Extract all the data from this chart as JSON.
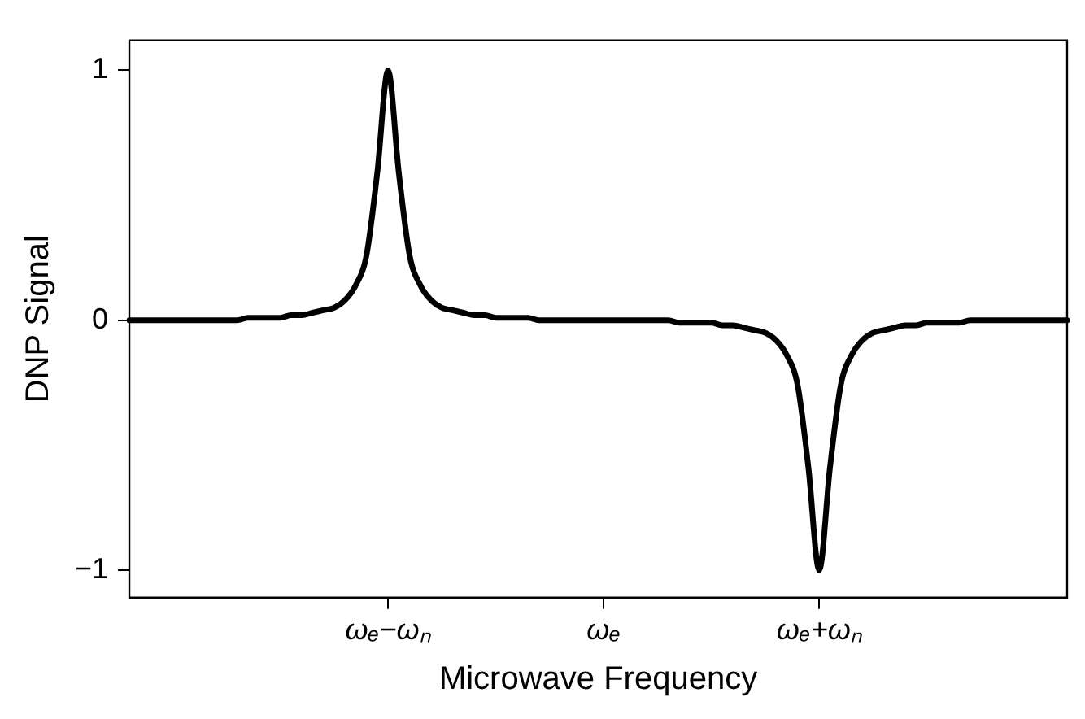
{
  "chart_data": {
    "type": "line",
    "xlabel": "Microwave Frequency",
    "ylabel": "DNP Signal",
    "categories": [
      null,
      null,
      null,
      null,
      null,
      null,
      null,
      null,
      null,
      null,
      null,
      null,
      null,
      null,
      null,
      null,
      null,
      null,
      null,
      null,
      null,
      null,
      null,
      null,
      "ωₑ−ωₙ",
      null,
      null,
      null,
      null,
      null,
      null,
      null,
      null,
      null,
      null,
      null,
      null,
      null,
      null,
      null,
      null,
      null,
      null,
      null,
      "ωₑ",
      null,
      null,
      null,
      null,
      null,
      null,
      null,
      null,
      null,
      null,
      null,
      null,
      null,
      null,
      null,
      null,
      null,
      null,
      null,
      "ωₑ+ωₙ",
      null,
      null,
      null,
      null,
      null,
      null,
      null,
      null,
      null,
      null,
      null,
      null,
      null,
      null,
      null,
      null,
      null,
      null,
      null,
      null,
      null,
      null,
      null
    ],
    "series": [
      {
        "color": "#000000",
        "values": [
          0,
          0,
          0,
          0,
          0,
          0,
          0,
          0,
          0,
          0,
          0,
          0.01,
          0.01,
          0.01,
          0.01,
          0.02,
          0.02,
          0.03,
          0.04,
          0.05,
          0.08,
          0.14,
          0.26,
          0.59,
          1,
          0.59,
          0.26,
          0.14,
          0.08,
          0.05,
          0.04,
          0.03,
          0.02,
          0.02,
          0.01,
          0.01,
          0.01,
          0.01,
          0,
          0,
          0,
          0,
          0,
          0,
          0,
          0,
          0,
          0,
          0,
          0,
          0,
          -0.01,
          -0.01,
          -0.01,
          -0.01,
          -0.02,
          -0.02,
          -0.03,
          -0.04,
          -0.05,
          -0.08,
          -0.14,
          -0.26,
          -0.59,
          -1,
          -0.59,
          -0.26,
          -0.14,
          -0.08,
          -0.05,
          -0.04,
          -0.03,
          -0.02,
          -0.02,
          -0.01,
          -0.01,
          -0.01,
          -0.01,
          0,
          0,
          0,
          0,
          0,
          0,
          0,
          0,
          0,
          0
        ]
      }
    ],
    "ylim": [
      -1.11,
      1.12
    ],
    "yticks": [
      {
        "value": -1,
        "label": "−1"
      },
      0,
      1
    ],
    "grid": false,
    "legend": false,
    "marker": "none",
    "line_style": "solid"
  }
}
